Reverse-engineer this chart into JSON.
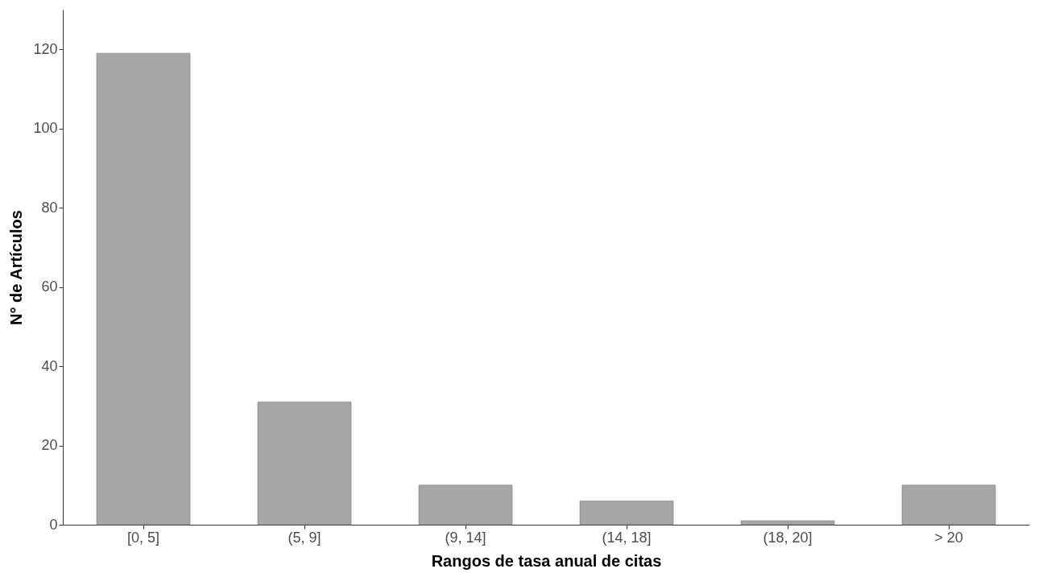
{
  "chart_data": {
    "type": "bar",
    "xlabel": "Rangos de tasa anual de citas",
    "ylabel": "N° de Artículos",
    "categories": [
      "[0, 5]",
      "(5, 9]",
      "(9, 14]",
      "(14, 18]",
      "(18, 20]",
      "> 20"
    ],
    "values": [
      119,
      31,
      10,
      6,
      1,
      10
    ],
    "color": "#a6a6a6",
    "ylim": [
      0,
      130
    ],
    "yticks": [
      0,
      20,
      40,
      60,
      80,
      100,
      120
    ],
    "grid": false,
    "legend": false
  }
}
